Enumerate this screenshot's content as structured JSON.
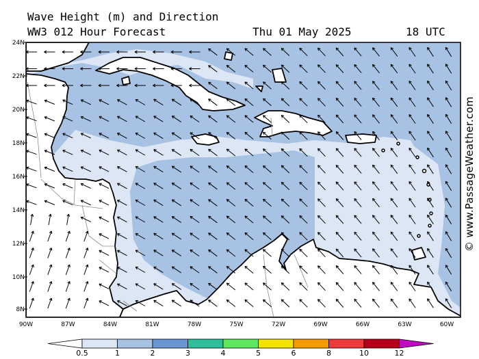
{
  "header": {
    "title": "Wave Height (m) and Direction",
    "model": "WW3 012 Hour Forecast",
    "date": "Thu 01 May 2025",
    "time": "18 UTC"
  },
  "credit": "© www.PassageWeather.com",
  "axes": {
    "lat_labels": [
      "24N",
      "22N",
      "20N",
      "18N",
      "16N",
      "14N",
      "12N",
      "10N",
      "8N"
    ],
    "lon_labels": [
      "90W",
      "87W",
      "84W",
      "81W",
      "78W",
      "75W",
      "72W",
      "69W",
      "66W",
      "63W",
      "60W"
    ]
  },
  "scale": {
    "ticks": [
      "0.5",
      "1",
      "2",
      "3",
      "4",
      "5",
      "6",
      "8",
      "10",
      "12"
    ],
    "colors": [
      "#ffffff",
      "#dce6f5",
      "#a8c2e4",
      "#6b96d3",
      "#2dbf9a",
      "#5de95f",
      "#f2e400",
      "#f59a00",
      "#ee3a3a",
      "#b4001b",
      "#c00ac0"
    ]
  },
  "map": {
    "sea_low_color": "#a8c2e4",
    "sea_calm_color": "#dce6f5",
    "land_color": "#ffffff",
    "dominant_direction": "ENE"
  }
}
